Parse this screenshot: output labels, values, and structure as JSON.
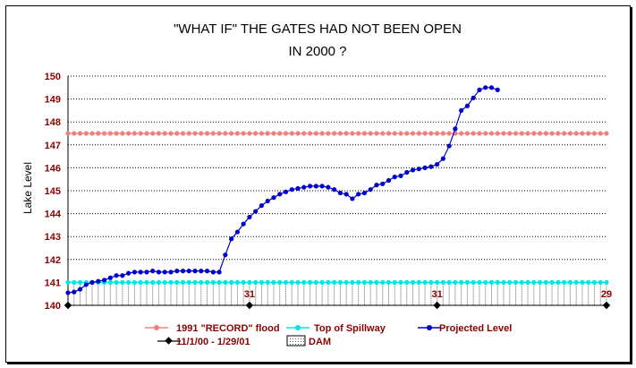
{
  "chart_data": {
    "type": "line",
    "title_lines": [
      "\"WHAT IF\" THE GATES HAD NOT BEEN OPEN",
      "IN 2000  ?"
    ],
    "ylabel": "Lake Level",
    "ylim": [
      140,
      150
    ],
    "yticks": [
      "140",
      "141",
      "142",
      "143",
      "144",
      "145",
      "146",
      "147",
      "148",
      "149",
      "150"
    ],
    "grid": true,
    "x_count": 90,
    "xtick_labels": [
      {
        "index": 30,
        "label": "31"
      },
      {
        "index": 61,
        "label": "31"
      },
      {
        "index": 89,
        "label": "29"
      }
    ],
    "legend": {
      "record": "1991 \"RECORD\" flood",
      "spillway": "Top of Spillway",
      "projected": "Projected Level",
      "dates": "11/1/00 - 1/29/01",
      "dam": "DAM"
    },
    "series": [
      {
        "name": "1991 \"RECORD\" flood",
        "key": "record",
        "color": "#f08080",
        "constant": 147.5
      },
      {
        "name": "Top of Spillway",
        "key": "spillway",
        "color": "#00e5e5",
        "constant": 141.0
      },
      {
        "name": "Projected Level",
        "key": "projected",
        "color": "#0000cc",
        "values": [
          140.55,
          140.58,
          140.7,
          140.9,
          141.0,
          141.05,
          141.1,
          141.2,
          141.3,
          141.3,
          141.4,
          141.45,
          141.45,
          141.45,
          141.5,
          141.45,
          141.45,
          141.45,
          141.5,
          141.5,
          141.5,
          141.5,
          141.5,
          141.5,
          141.45,
          141.45,
          142.2,
          142.9,
          143.2,
          143.55,
          143.85,
          144.1,
          144.35,
          144.55,
          144.7,
          144.85,
          144.95,
          145.05,
          145.1,
          145.15,
          145.2,
          145.2,
          145.2,
          145.15,
          145.05,
          144.9,
          144.85,
          144.65,
          144.85,
          144.9,
          145.05,
          145.25,
          145.3,
          145.45,
          145.6,
          145.65,
          145.8,
          145.9,
          145.95,
          146.0,
          146.05,
          146.15,
          146.4,
          146.95,
          147.7,
          148.5,
          148.7,
          149.05,
          149.4,
          149.5,
          149.5,
          149.4
        ]
      },
      {
        "name": "11/1/00 - 1/29/01",
        "key": "dates",
        "color": "#000000",
        "marker_indices": [
          0,
          30,
          61,
          89
        ]
      },
      {
        "name": "DAM",
        "key": "dam",
        "color": "#555555"
      }
    ],
    "colors": {
      "tick_text": "#8b0000",
      "grid": "#000000"
    }
  }
}
